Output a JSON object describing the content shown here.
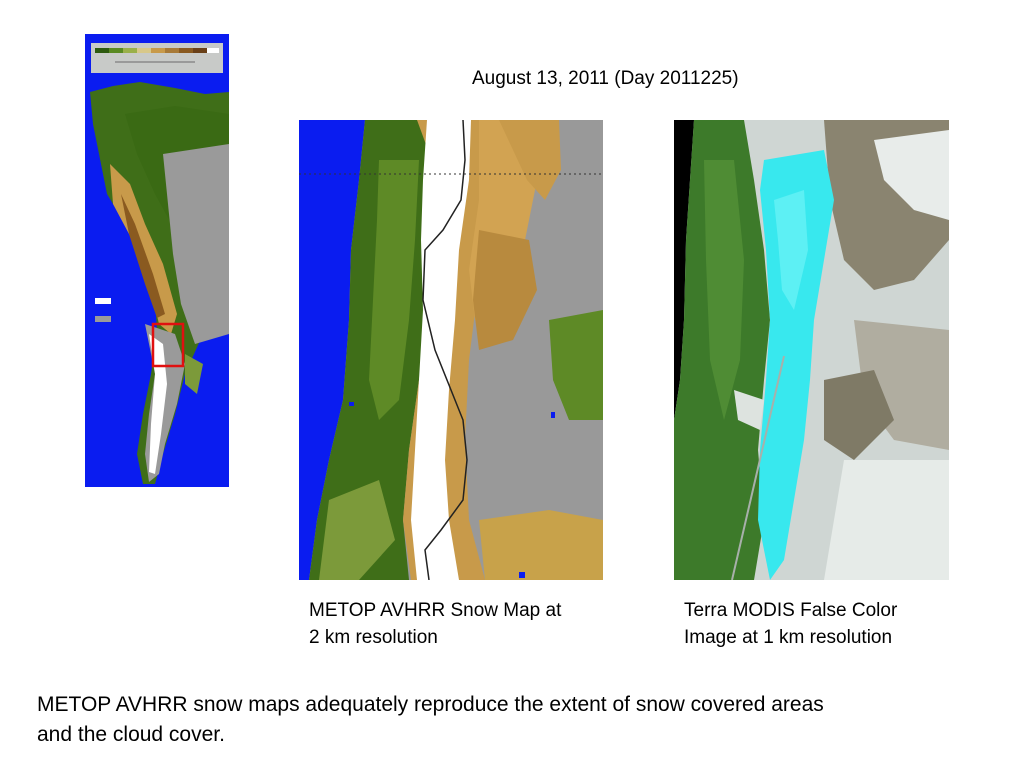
{
  "slide": {
    "title": "August 13, 2011 (Day 2011225)",
    "caption_avhrr_line1": "METOP AVHRR Snow Map at",
    "caption_avhrr_line2": "2 km resolution",
    "caption_modis_line1": "Terra MODIS False Color",
    "caption_modis_line2": "Image at 1 km resolution",
    "conclusion_line1": "METOP AVHRR snow maps adequately reproduce the extent of snow covered areas",
    "conclusion_line2": "and the cloud cover."
  },
  "colors": {
    "ocean": "#0a1cf0",
    "forest": "#3f6e18",
    "grass": "#7c9a3a",
    "tan": "#c89a4a",
    "brown": "#9a6a2a",
    "cloud_gray": "#999999",
    "snow": "#ffffff",
    "highlight_box": "#e01010",
    "modis_snow": "#38e8ee",
    "modis_cloud": "#cfd6d3",
    "modis_space": "#000000"
  }
}
